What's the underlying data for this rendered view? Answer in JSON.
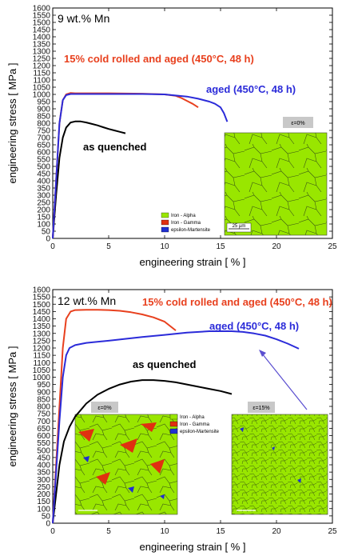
{
  "chart_data": [
    {
      "type": "line",
      "title": "9 wt.% Mn",
      "xlabel": "engineering strain [ % ]",
      "ylabel": "engineering stress [ MPa ]",
      "xlim": [
        0,
        25
      ],
      "ylim": [
        0,
        1600
      ],
      "xticks": [
        0,
        5,
        10,
        15,
        20,
        25
      ],
      "yticks": [
        0,
        50,
        100,
        150,
        200,
        250,
        300,
        350,
        400,
        450,
        500,
        550,
        600,
        650,
        700,
        750,
        800,
        850,
        900,
        950,
        1000,
        1050,
        1100,
        1150,
        1200,
        1250,
        1300,
        1350,
        1400,
        1450,
        1500,
        1550,
        1600
      ],
      "grid": false,
      "series": [
        {
          "name": "as quenched",
          "color": "#000000",
          "x": [
            0,
            0.3,
            0.6,
            0.9,
            1.2,
            1.6,
            2.0,
            2.5,
            3.0,
            3.5,
            4.0,
            4.5,
            5.0,
            5.5,
            6.0,
            6.5
          ],
          "y": [
            0,
            300,
            560,
            700,
            770,
            805,
            812,
            812,
            805,
            795,
            785,
            772,
            760,
            750,
            740,
            730
          ]
        },
        {
          "name": "15% cold rolled and aged (450°C, 48 h)",
          "color": "#e8401e",
          "x": [
            0,
            0.3,
            0.6,
            0.9,
            1.2,
            1.6,
            2.0,
            3.0,
            5.0,
            8.0,
            10.0,
            11.0,
            11.5,
            12.0,
            12.5,
            13.0
          ],
          "y": [
            0,
            400,
            800,
            960,
            1000,
            1010,
            1008,
            1008,
            1008,
            1005,
            1000,
            990,
            975,
            955,
            935,
            910
          ]
        },
        {
          "name": "aged (450°C, 48 h)",
          "color": "#2b2bd9",
          "x": [
            0,
            0.3,
            0.6,
            0.9,
            1.2,
            1.6,
            2.0,
            3.0,
            5.0,
            8.0,
            10.0,
            12.0,
            13.0,
            14.0,
            14.5,
            15.0,
            15.3,
            15.6
          ],
          "y": [
            0,
            400,
            800,
            960,
            995,
            1003,
            1003,
            1003,
            1003,
            1003,
            1000,
            985,
            970,
            950,
            935,
            910,
            870,
            810
          ]
        }
      ],
      "annotations": [
        "15% cold rolled and aged (450°C, 48 h)",
        "aged (450°C, 48 h)",
        "as quenched"
      ],
      "inset": {
        "label": "ε=0%",
        "legend": [
          {
            "name": "Iron - Alpha",
            "color": "#99e600"
          },
          {
            "name": "Iron - Gamma",
            "color": "#e03010"
          },
          {
            "name": "epsilon-Martensite",
            "color": "#2030d0"
          }
        ],
        "scale_bar": "25 µm"
      }
    },
    {
      "type": "line",
      "title": "12 wt.% Mn",
      "xlabel": "engineering strain [ % ]",
      "ylabel": "engineering stress [ MPa ]",
      "xlim": [
        0,
        25
      ],
      "ylim": [
        0,
        1600
      ],
      "xticks": [
        0,
        5,
        10,
        15,
        20,
        25
      ],
      "yticks": [
        0,
        50,
        100,
        150,
        200,
        250,
        300,
        350,
        400,
        450,
        500,
        550,
        600,
        650,
        700,
        750,
        800,
        850,
        900,
        950,
        1000,
        1050,
        1100,
        1150,
        1200,
        1250,
        1300,
        1350,
        1400,
        1450,
        1500,
        1550,
        1600
      ],
      "grid": false,
      "series": [
        {
          "name": "as quenched",
          "color": "#000000",
          "x": [
            0,
            0.3,
            0.6,
            1.0,
            1.5,
            2.0,
            3.0,
            4.0,
            5.0,
            6.0,
            7.0,
            8.0,
            9.0,
            10.0,
            11.0,
            12.0,
            13.0,
            14.0,
            15.0,
            16.0
          ],
          "y": [
            0,
            200,
            400,
            560,
            660,
            730,
            820,
            880,
            920,
            950,
            970,
            980,
            980,
            975,
            965,
            950,
            935,
            920,
            905,
            885
          ]
        },
        {
          "name": "15% cold rolled and aged (450°C, 48 h)",
          "color": "#e8401e",
          "x": [
            0,
            0.3,
            0.6,
            0.9,
            1.2,
            1.6,
            2.0,
            3.0,
            4.0,
            5.0,
            6.0,
            7.0,
            8.0,
            9.0,
            10.0,
            10.5,
            11.0
          ],
          "y": [
            0,
            400,
            800,
            1200,
            1400,
            1450,
            1460,
            1462,
            1462,
            1460,
            1455,
            1445,
            1430,
            1410,
            1380,
            1350,
            1320
          ]
        },
        {
          "name": "aged (450°C, 48 h)",
          "color": "#2b2bd9",
          "x": [
            0,
            0.3,
            0.6,
            0.9,
            1.2,
            1.5,
            2.0,
            3.0,
            5.0,
            8.0,
            10.0,
            12.0,
            14.0,
            16.0,
            17.0,
            18.0,
            19.0,
            20.0,
            21.0,
            22.0
          ],
          "y": [
            0,
            350,
            700,
            1000,
            1150,
            1200,
            1220,
            1235,
            1250,
            1275,
            1290,
            1305,
            1315,
            1315,
            1310,
            1300,
            1285,
            1260,
            1230,
            1195
          ]
        }
      ],
      "annotations": [
        "15% cold rolled and aged (450°C, 48 h)",
        "aged (450°C, 48 h)",
        "as quenched"
      ],
      "insets": [
        {
          "label": "ε=0%",
          "legend": [
            {
              "name": "Iron - Alpha",
              "color": "#99e600"
            },
            {
              "name": "Iron - Gamma",
              "color": "#e03010"
            },
            {
              "name": "epsilon-Martensite",
              "color": "#2030d0"
            }
          ]
        },
        {
          "label": "ε=15%"
        }
      ]
    }
  ]
}
